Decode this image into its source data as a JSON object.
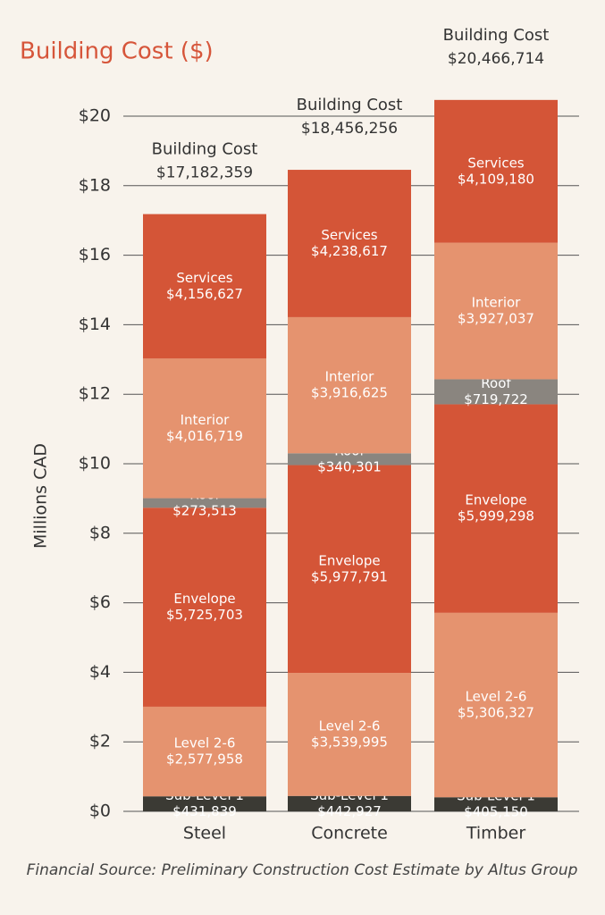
{
  "chart_data": {
    "type": "stacked_bar",
    "title": "Building Cost ($)",
    "y_label": "Millions CAD",
    "source": "Financial Source:  Preliminary Construction Cost Estimate by Altus Group",
    "categories": [
      "Steel",
      "Concrete",
      "Timber"
    ],
    "series": [
      {
        "name": "Sub-Level 1",
        "color": "#3b3a34",
        "values": [
          0.431839,
          0.442927,
          0.40515
        ],
        "value_labels": [
          "$431,839",
          "$442,927",
          "$405,150"
        ]
      },
      {
        "name": "Level 2-6",
        "color": "#e5936f",
        "values": [
          2.577958,
          3.539995,
          5.306327
        ],
        "value_labels": [
          "$2,577,958",
          "$3,539,995",
          "$5,306,327"
        ]
      },
      {
        "name": "Envelope",
        "color": "#d45537",
        "values": [
          5.725703,
          5.977791,
          5.999298
        ],
        "value_labels": [
          "$5,725,703",
          "$5,977,791",
          "$5,999,298"
        ]
      },
      {
        "name": "Roof",
        "color": "#8a857f",
        "values": [
          0.273513,
          0.340301,
          0.719722
        ],
        "value_labels": [
          "$273,513",
          "$340,301",
          "$719,722"
        ]
      },
      {
        "name": "Interior",
        "color": "#e5936f",
        "values": [
          4.016719,
          3.916625,
          3.927037
        ],
        "value_labels": [
          "$4,016,719",
          "$3,916,625",
          "$3,927,037"
        ]
      },
      {
        "name": "Services",
        "color": "#d45537",
        "values": [
          4.156627,
          4.238617,
          4.10918
        ],
        "value_labels": [
          "$4,156,627",
          "$4,238,617",
          "$4,109,180"
        ]
      }
    ],
    "totals": {
      "label": "Building Cost",
      "values": [
        17.182359,
        18.456256,
        20.466714
      ],
      "value_labels": [
        "$17,182,359",
        "$18,456,256",
        "$20,466,714"
      ]
    },
    "ylim": [
      0,
      20
    ],
    "yticks": [
      {
        "value": 0,
        "label": "$0"
      },
      {
        "value": 2,
        "label": "$2"
      },
      {
        "value": 4,
        "label": "$4"
      },
      {
        "value": 6,
        "label": "$6"
      },
      {
        "value": 8,
        "label": "$8"
      },
      {
        "value": 10,
        "label": "$10"
      },
      {
        "value": 12,
        "label": "$12"
      },
      {
        "value": 14,
        "label": "$14"
      },
      {
        "value": 16,
        "label": "$16"
      },
      {
        "value": 18,
        "label": "$18"
      },
      {
        "value": 20,
        "label": "$20"
      }
    ],
    "grid": true
  }
}
